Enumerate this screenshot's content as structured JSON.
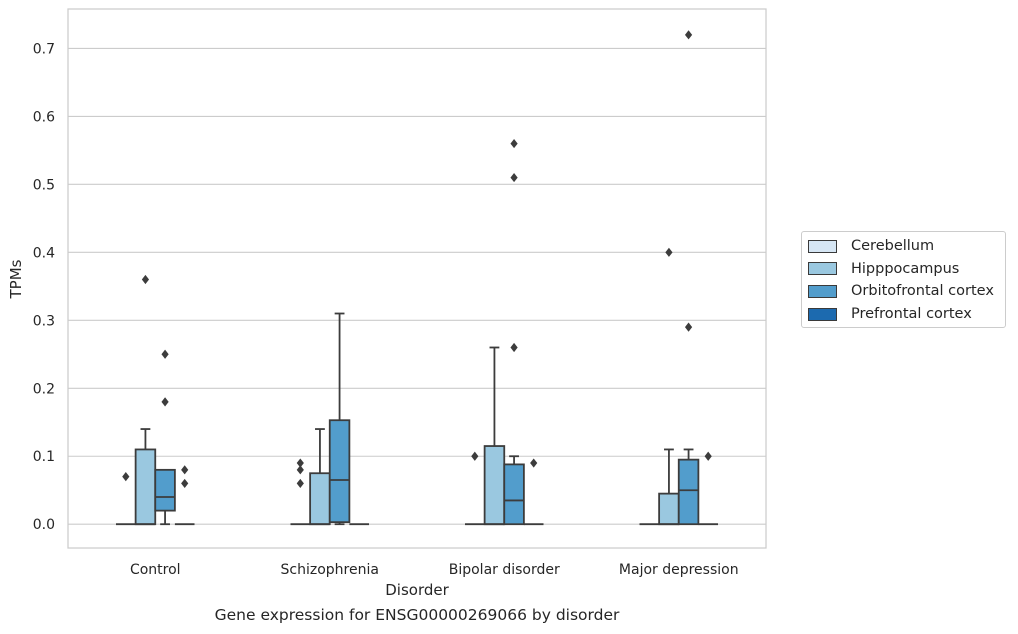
{
  "caption": "Gene expression for ENSG00000269066 by disorder",
  "chart_data": {
    "type": "box",
    "title": "",
    "xlabel": "Disorder",
    "ylabel": "TPMs",
    "ylim": [
      -0.035,
      0.758
    ],
    "yticks": [
      0.0,
      0.1,
      0.2,
      0.3,
      0.4,
      0.5,
      0.6,
      0.7
    ],
    "ytick_labels": [
      "0.0",
      "0.1",
      "0.2",
      "0.3",
      "0.4",
      "0.5",
      "0.6",
      "0.7"
    ],
    "grid": "horizontal",
    "legend_position": "center-right outside",
    "categories": [
      "Control",
      "Schizophrenia",
      "Bipolar disorder",
      "Major depression"
    ],
    "series": [
      {
        "name": "Cerebellum",
        "color": "#d6e6f4",
        "boxes": [
          {
            "q1": 0,
            "median": 0,
            "q3": 0,
            "whisker_low": 0,
            "whisker_high": 0,
            "outliers": [
              0.07
            ]
          },
          {
            "q1": 0,
            "median": 0,
            "q3": 0,
            "whisker_low": 0,
            "whisker_high": 0,
            "outliers": [
              0.06,
              0.08,
              0.09
            ]
          },
          {
            "q1": 0,
            "median": 0,
            "q3": 0,
            "whisker_low": 0,
            "whisker_high": 0,
            "outliers": [
              0.1
            ]
          },
          {
            "q1": 0,
            "median": 0,
            "q3": 0,
            "whisker_low": 0,
            "whisker_high": 0,
            "outliers": []
          }
        ]
      },
      {
        "name": "Hipppocampus",
        "color": "#9ac8e0",
        "boxes": [
          {
            "q1": 0,
            "median": 0,
            "q3": 0.11,
            "whisker_low": 0,
            "whisker_high": 0.14,
            "outliers": [
              0.36
            ]
          },
          {
            "q1": 0,
            "median": 0,
            "q3": 0.075,
            "whisker_low": 0,
            "whisker_high": 0.14,
            "outliers": []
          },
          {
            "q1": 0,
            "median": 0,
            "q3": 0.115,
            "whisker_low": 0,
            "whisker_high": 0.26,
            "outliers": []
          },
          {
            "q1": 0,
            "median": 0,
            "q3": 0.045,
            "whisker_low": 0,
            "whisker_high": 0.11,
            "outliers": [
              0.4
            ]
          }
        ]
      },
      {
        "name": "Orbitofrontal cortex",
        "color": "#529dcc",
        "boxes": [
          {
            "q1": 0.02,
            "median": 0.04,
            "q3": 0.08,
            "whisker_low": 0,
            "whisker_high": 0.08,
            "outliers": [
              0.18,
              0.25
            ]
          },
          {
            "q1": 0.003,
            "median": 0.065,
            "q3": 0.153,
            "whisker_low": 0,
            "whisker_high": 0.31,
            "outliers": []
          },
          {
            "q1": 0,
            "median": 0.035,
            "q3": 0.088,
            "whisker_low": 0,
            "whisker_high": 0.1,
            "outliers": [
              0.26,
              0.51,
              0.56
            ]
          },
          {
            "q1": 0,
            "median": 0.05,
            "q3": 0.095,
            "whisker_low": 0,
            "whisker_high": 0.11,
            "outliers": [
              0.29,
              0.72
            ]
          }
        ]
      },
      {
        "name": "Prefrontal cortex",
        "color": "#1c6aaf",
        "boxes": [
          {
            "q1": 0,
            "median": 0,
            "q3": 0,
            "whisker_low": 0,
            "whisker_high": 0,
            "outliers": [
              0.06,
              0.08
            ]
          },
          {
            "q1": 0,
            "median": 0,
            "q3": 0,
            "whisker_low": 0,
            "whisker_high": 0,
            "outliers": []
          },
          {
            "q1": 0,
            "median": 0,
            "q3": 0,
            "whisker_low": 0,
            "whisker_high": 0,
            "outliers": [
              0.09
            ]
          },
          {
            "q1": 0,
            "median": 0,
            "q3": 0,
            "whisker_low": 0,
            "whisker_high": 0,
            "outliers": [
              0.1
            ]
          }
        ]
      }
    ]
  }
}
